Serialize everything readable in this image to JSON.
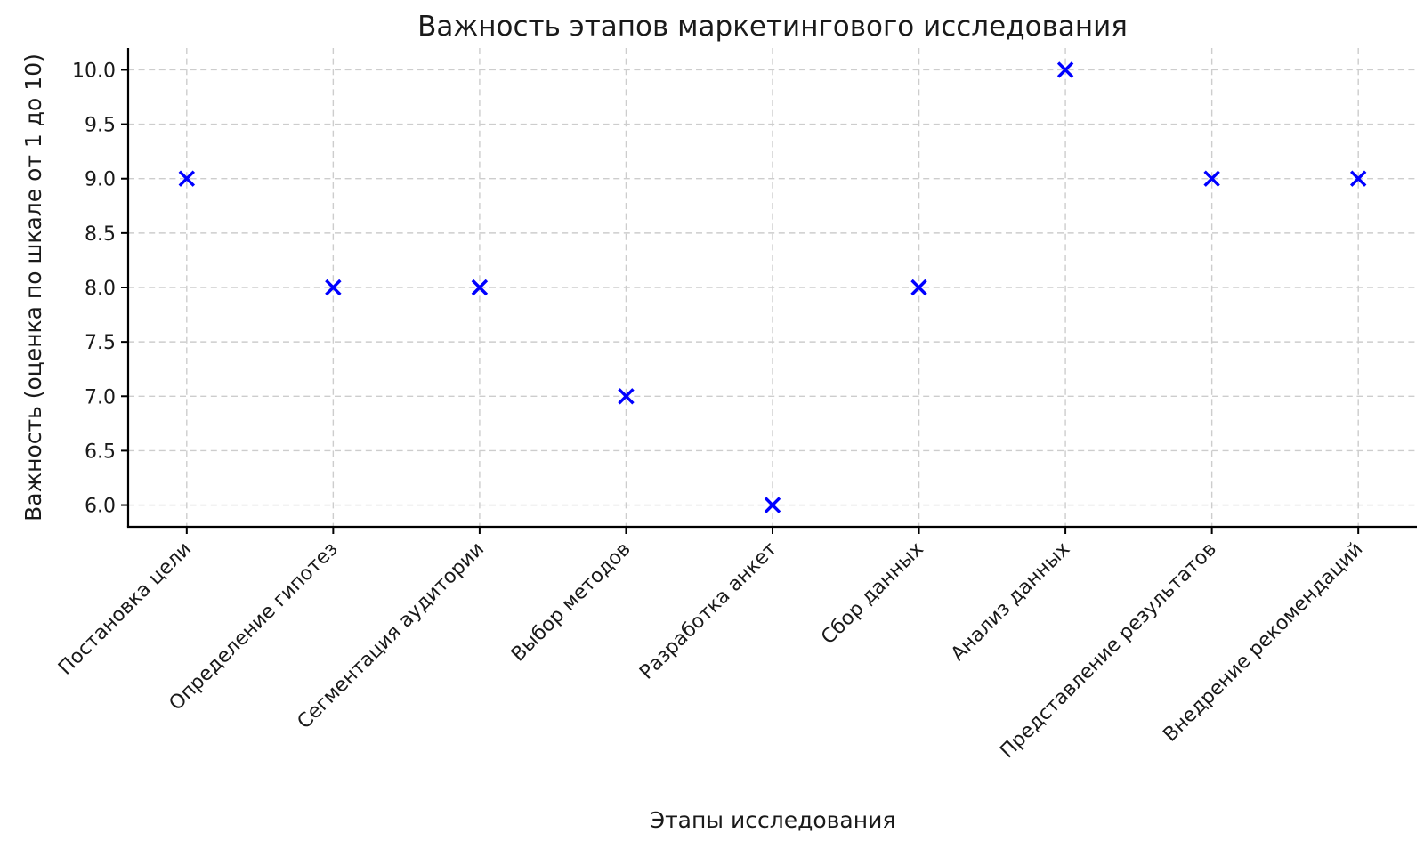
{
  "chart_data": {
    "type": "scatter",
    "title": "Важность этапов маркетингового исследования",
    "xlabel": "Этапы исследования",
    "ylabel": "Важность (оценка по шкале от 1 до 10)",
    "categories": [
      "Постановка цели",
      "Определение гипотез",
      "Сегментация аудитории",
      "Выбор методов",
      "Разработка анкет",
      "Сбор данных",
      "Анализ данных",
      "Представление результатов",
      "Внедрение рекомендаций"
    ],
    "values": [
      9,
      8,
      8,
      7,
      6,
      8,
      10,
      9,
      9
    ],
    "yticks": [
      6.0,
      6.5,
      7.0,
      7.5,
      8.0,
      8.5,
      9.0,
      9.5,
      10.0
    ],
    "ylim": [
      5.8,
      10.2
    ],
    "grid": true,
    "grid_style": "dashed",
    "legend": false,
    "marker": {
      "shape": "x",
      "color": "#0000ff",
      "size": 16,
      "stroke_width": 3.4
    },
    "colors": {
      "background": "#ffffff",
      "grid": "#cdcdcd",
      "axis": "#000000",
      "text": "#1a1a1a"
    }
  }
}
